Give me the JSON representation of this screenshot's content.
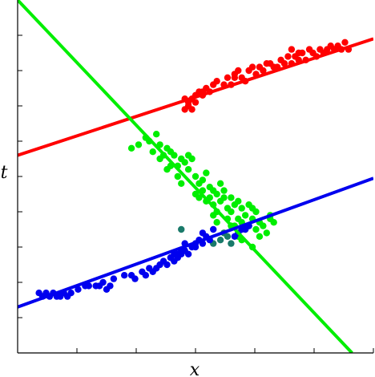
{
  "chart_data": {
    "type": "scatter",
    "title": "",
    "xlabel": "x",
    "ylabel": "t",
    "xlim": [
      0,
      1
    ],
    "ylim": [
      0,
      1
    ],
    "grid": false,
    "legend": "none",
    "x_tick_count": 6,
    "y_tick_count": 10,
    "colors": {
      "red": "#ff0000",
      "green": "#00ee00",
      "blue": "#0000ee",
      "axis": "#000000"
    },
    "lines": [
      {
        "color": "red",
        "x": [
          0.0,
          1.0
        ],
        "y": [
          0.56,
          0.89
        ]
      },
      {
        "color": "green",
        "x": [
          0.0,
          0.94
        ],
        "y": [
          1.0,
          0.0
        ]
      },
      {
        "color": "blue",
        "x": [
          0.0,
          1.0
        ],
        "y": [
          0.13,
          0.495
        ]
      }
    ],
    "series": [
      {
        "color": "red",
        "points": [
          [
            0.47,
            0.72
          ],
          [
            0.48,
            0.71
          ],
          [
            0.49,
            0.72
          ],
          [
            0.5,
            0.73
          ],
          [
            0.51,
            0.74
          ],
          [
            0.52,
            0.74
          ],
          [
            0.53,
            0.75
          ],
          [
            0.54,
            0.74
          ],
          [
            0.47,
            0.69
          ],
          [
            0.48,
            0.7
          ],
          [
            0.49,
            0.69
          ],
          [
            0.5,
            0.71
          ],
          [
            0.52,
            0.73
          ],
          [
            0.55,
            0.76
          ],
          [
            0.56,
            0.77
          ],
          [
            0.58,
            0.76
          ],
          [
            0.59,
            0.78
          ],
          [
            0.61,
            0.79
          ],
          [
            0.62,
            0.8
          ],
          [
            0.63,
            0.78
          ],
          [
            0.64,
            0.77
          ],
          [
            0.65,
            0.8
          ],
          [
            0.66,
            0.81
          ],
          [
            0.67,
            0.79
          ],
          [
            0.68,
            0.81
          ],
          [
            0.69,
            0.8
          ],
          [
            0.7,
            0.82
          ],
          [
            0.71,
            0.82
          ],
          [
            0.72,
            0.81
          ],
          [
            0.74,
            0.83
          ],
          [
            0.75,
            0.82
          ],
          [
            0.76,
            0.84
          ],
          [
            0.77,
            0.82
          ],
          [
            0.78,
            0.84
          ],
          [
            0.79,
            0.83
          ],
          [
            0.8,
            0.85
          ],
          [
            0.81,
            0.83
          ],
          [
            0.82,
            0.86
          ],
          [
            0.83,
            0.85
          ],
          [
            0.84,
            0.84
          ],
          [
            0.85,
            0.86
          ],
          [
            0.86,
            0.85
          ],
          [
            0.87,
            0.86
          ],
          [
            0.88,
            0.87
          ],
          [
            0.89,
            0.86
          ],
          [
            0.9,
            0.87
          ],
          [
            0.91,
            0.86
          ],
          [
            0.92,
            0.88
          ],
          [
            0.93,
            0.86
          ],
          [
            0.6,
            0.76
          ],
          [
            0.61,
            0.78
          ],
          [
            0.73,
            0.81
          ],
          [
            0.77,
            0.86
          ],
          [
            0.79,
            0.85
          ]
        ]
      },
      {
        "color": "green",
        "points": [
          [
            0.32,
            0.58
          ],
          [
            0.34,
            0.59
          ],
          [
            0.36,
            0.61
          ],
          [
            0.37,
            0.6
          ],
          [
            0.39,
            0.62
          ],
          [
            0.4,
            0.59
          ],
          [
            0.42,
            0.58
          ],
          [
            0.43,
            0.57
          ],
          [
            0.45,
            0.53
          ],
          [
            0.44,
            0.56
          ],
          [
            0.46,
            0.55
          ],
          [
            0.47,
            0.54
          ],
          [
            0.48,
            0.52
          ],
          [
            0.49,
            0.55
          ],
          [
            0.5,
            0.5
          ],
          [
            0.51,
            0.48
          ],
          [
            0.52,
            0.49
          ],
          [
            0.53,
            0.51
          ],
          [
            0.54,
            0.47
          ],
          [
            0.55,
            0.46
          ],
          [
            0.56,
            0.45
          ],
          [
            0.57,
            0.43
          ],
          [
            0.58,
            0.44
          ],
          [
            0.59,
            0.41
          ],
          [
            0.6,
            0.4
          ],
          [
            0.61,
            0.42
          ],
          [
            0.62,
            0.38
          ],
          [
            0.63,
            0.37
          ],
          [
            0.64,
            0.39
          ],
          [
            0.65,
            0.36
          ],
          [
            0.66,
            0.38
          ],
          [
            0.67,
            0.35
          ],
          [
            0.68,
            0.37
          ],
          [
            0.69,
            0.36
          ],
          [
            0.7,
            0.34
          ],
          [
            0.71,
            0.39
          ],
          [
            0.72,
            0.37
          ],
          [
            0.56,
            0.4
          ],
          [
            0.55,
            0.42
          ],
          [
            0.58,
            0.46
          ],
          [
            0.6,
            0.44
          ],
          [
            0.62,
            0.43
          ],
          [
            0.64,
            0.35
          ],
          [
            0.65,
            0.42
          ],
          [
            0.66,
            0.41
          ],
          [
            0.63,
            0.32
          ],
          [
            0.61,
            0.36
          ],
          [
            0.59,
            0.38
          ],
          [
            0.53,
            0.43
          ],
          [
            0.52,
            0.46
          ],
          [
            0.57,
            0.48
          ],
          [
            0.48,
            0.56
          ],
          [
            0.41,
            0.56
          ],
          [
            0.38,
            0.57
          ],
          [
            0.42,
            0.52
          ],
          [
            0.45,
            0.5
          ],
          [
            0.5,
            0.45
          ],
          [
            0.54,
            0.44
          ],
          [
            0.56,
            0.37
          ],
          [
            0.58,
            0.34
          ],
          [
            0.62,
            0.33
          ],
          [
            0.68,
            0.33
          ],
          [
            0.66,
            0.3
          ],
          [
            0.71,
            0.38
          ],
          [
            0.46,
            0.48
          ],
          [
            0.51,
            0.44
          ],
          [
            0.55,
            0.39
          ],
          [
            0.6,
            0.36
          ],
          [
            0.63,
            0.41
          ],
          [
            0.67,
            0.4
          ],
          [
            0.43,
            0.53
          ],
          [
            0.4,
            0.55
          ]
        ]
      },
      {
        "color": "teal",
        "points": [
          [
            0.46,
            0.35
          ],
          [
            0.55,
            0.31
          ],
          [
            0.57,
            0.32
          ],
          [
            0.58,
            0.34
          ],
          [
            0.59,
            0.33
          ],
          [
            0.6,
            0.31
          ]
        ]
      },
      {
        "color": "blue",
        "points": [
          [
            0.08,
            0.17
          ],
          [
            0.09,
            0.16
          ],
          [
            0.1,
            0.17
          ],
          [
            0.11,
            0.16
          ],
          [
            0.12,
            0.16
          ],
          [
            0.13,
            0.17
          ],
          [
            0.14,
            0.16
          ],
          [
            0.15,
            0.17
          ],
          [
            0.17,
            0.18
          ],
          [
            0.19,
            0.19
          ],
          [
            0.22,
            0.19
          ],
          [
            0.23,
            0.19
          ],
          [
            0.24,
            0.2
          ],
          [
            0.25,
            0.18
          ],
          [
            0.26,
            0.19
          ],
          [
            0.27,
            0.21
          ],
          [
            0.3,
            0.22
          ],
          [
            0.32,
            0.22
          ],
          [
            0.33,
            0.21
          ],
          [
            0.35,
            0.23
          ],
          [
            0.36,
            0.22
          ],
          [
            0.37,
            0.24
          ],
          [
            0.38,
            0.23
          ],
          [
            0.39,
            0.24
          ],
          [
            0.4,
            0.25
          ],
          [
            0.41,
            0.26
          ],
          [
            0.42,
            0.25
          ],
          [
            0.43,
            0.27
          ],
          [
            0.44,
            0.26
          ],
          [
            0.45,
            0.27
          ],
          [
            0.46,
            0.28
          ],
          [
            0.47,
            0.29
          ],
          [
            0.48,
            0.28
          ],
          [
            0.49,
            0.3
          ],
          [
            0.5,
            0.31
          ],
          [
            0.51,
            0.32
          ],
          [
            0.52,
            0.31
          ],
          [
            0.53,
            0.33
          ],
          [
            0.54,
            0.32
          ],
          [
            0.47,
            0.31
          ],
          [
            0.45,
            0.28
          ],
          [
            0.43,
            0.27
          ],
          [
            0.5,
            0.3
          ],
          [
            0.52,
            0.34
          ],
          [
            0.46,
            0.29
          ],
          [
            0.44,
            0.28
          ],
          [
            0.2,
            0.19
          ],
          [
            0.06,
            0.17
          ],
          [
            0.07,
            0.16
          ],
          [
            0.64,
            0.35
          ],
          [
            0.65,
            0.36
          ],
          [
            0.63,
            0.35
          ],
          [
            0.62,
            0.34
          ],
          [
            0.61,
            0.33
          ],
          [
            0.55,
            0.35
          ]
        ]
      }
    ]
  }
}
